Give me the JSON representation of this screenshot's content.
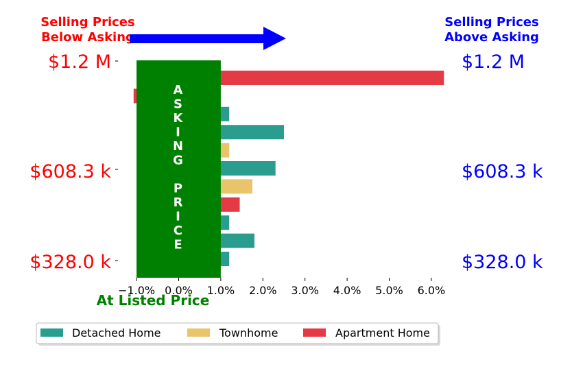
{
  "header": {
    "left_line1": "Selling Prices",
    "left_line2": "Below Asking",
    "right_line1": "Selling Prices",
    "right_line2": "Above Asking",
    "left_color": "#ff0000",
    "right_color": "#0000ff",
    "arrow_color": "#0000ff"
  },
  "price_labels": [
    "$1.2 M",
    "$608.3 k",
    "$328.0 k"
  ],
  "band": {
    "letters": [
      "A",
      "S",
      "K",
      "I",
      "N",
      "G",
      "",
      "P",
      "R",
      "I",
      "C",
      "E"
    ],
    "color": "#008000"
  },
  "listed_label": "At Listed Price",
  "listed_color": "#008000",
  "chart_data": {
    "type": "bar",
    "orientation": "horizontal",
    "xlim": [
      -1.0,
      6.3
    ],
    "x_ticks": [
      "−1.0%",
      "0.0%",
      "1.0%",
      "2.0%",
      "3.0%",
      "4.0%",
      "5.0%",
      "6.0%"
    ],
    "x_tick_values": [
      -1,
      0,
      1,
      2,
      3,
      4,
      5,
      6
    ],
    "band_range": [
      -1.0,
      1.0
    ],
    "series_colors": {
      "Detached Home": "#2a9d8f",
      "Townhome": "#e9c46a",
      "Apartment Home": "#e63946"
    },
    "bars": [
      {
        "series": "Apartment Home",
        "value": 6.3
      },
      {
        "series": "Apartment Home",
        "value": -1.07
      },
      {
        "series": "Detached Home",
        "value": 1.2
      },
      {
        "series": "Detached Home",
        "value": 2.5
      },
      {
        "series": "Townhome",
        "value": 1.2
      },
      {
        "series": "Detached Home",
        "value": 2.3
      },
      {
        "series": "Townhome",
        "value": 1.75
      },
      {
        "series": "Apartment Home",
        "value": 1.45
      },
      {
        "series": "Detached Home",
        "value": 1.2
      },
      {
        "series": "Detached Home",
        "value": 1.8
      },
      {
        "series": "Detached Home",
        "value": 1.2
      }
    ],
    "legend": [
      "Detached Home",
      "Townhome",
      "Apartment Home"
    ],
    "legend_position": "bottom"
  }
}
